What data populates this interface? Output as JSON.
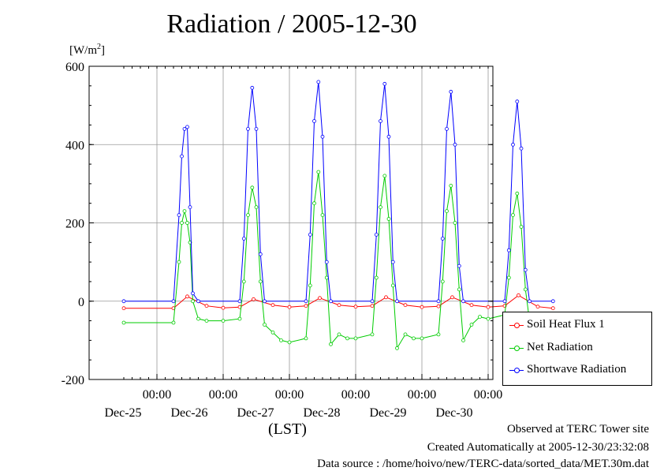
{
  "chart_data": {
    "type": "line",
    "title": "Radiation / 2005-12-30",
    "y_unit_base": "[W/m",
    "y_unit_sup": "2",
    "y_unit_end": "]",
    "ylim": [
      -200,
      600
    ],
    "y_ticks": [
      "600",
      "400",
      "200",
      "0",
      "-200"
    ],
    "x_tick_time": "00:00",
    "x_days": [
      "Dec-25",
      "Dec-26",
      "Dec-27",
      "Dec-28",
      "Dec-29",
      "Dec-30"
    ],
    "xlabel": "(LST)",
    "grid": true,
    "legend_position": "right",
    "series": [
      {
        "name": "Soil Heat Flux 1",
        "color": "#ff0000",
        "x": [
          "Dec-24 12:00",
          "Dec-25 06:00",
          "Dec-25 11:00",
          "Dec-25 18:00",
          "Dec-26 00:00",
          "Dec-26 06:00",
          "Dec-26 11:00",
          "Dec-26 18:00",
          "Dec-27 00:00",
          "Dec-27 06:00",
          "Dec-27 11:00",
          "Dec-27 18:00",
          "Dec-28 00:00",
          "Dec-28 06:00",
          "Dec-28 11:00",
          "Dec-28 18:00",
          "Dec-29 00:00",
          "Dec-29 06:00",
          "Dec-29 11:00",
          "Dec-29 18:00",
          "Dec-30 00:00",
          "Dec-30 06:00",
          "Dec-30 11:00",
          "Dec-30 18:00",
          "Dec-30 23:30"
        ],
        "y": [
          -18,
          -18,
          12,
          -12,
          -17,
          -15,
          5,
          -10,
          -15,
          -12,
          8,
          -10,
          -14,
          -12,
          10,
          -10,
          -15,
          -13,
          10,
          -10,
          -15,
          -12,
          15,
          -14,
          -18
        ]
      },
      {
        "name": "Net Radiation",
        "color": "#00cc00",
        "x": [
          "Dec-24 12:00",
          "Dec-25 06:00",
          "Dec-25 08:00",
          "Dec-25 09:00",
          "Dec-25 10:00",
          "Dec-25 11:00",
          "Dec-25 12:00",
          "Dec-25 13:00",
          "Dec-25 15:00",
          "Dec-25 18:00",
          "Dec-26 00:00",
          "Dec-26 06:00",
          "Dec-26 07:30",
          "Dec-26 09:00",
          "Dec-26 10:30",
          "Dec-26 12:00",
          "Dec-26 13:30",
          "Dec-26 15:00",
          "Dec-26 18:00",
          "Dec-26 21:00",
          "Dec-27 00:00",
          "Dec-27 06:00",
          "Dec-27 07:30",
          "Dec-27 09:00",
          "Dec-27 10:30",
          "Dec-27 12:00",
          "Dec-27 13:30",
          "Dec-27 15:00",
          "Dec-27 18:00",
          "Dec-27 21:00",
          "Dec-28 00:00",
          "Dec-28 06:00",
          "Dec-28 07:30",
          "Dec-28 09:00",
          "Dec-28 10:30",
          "Dec-28 12:00",
          "Dec-28 13:30",
          "Dec-28 15:00",
          "Dec-28 18:00",
          "Dec-28 21:00",
          "Dec-29 00:00",
          "Dec-29 06:00",
          "Dec-29 07:30",
          "Dec-29 09:00",
          "Dec-29 10:30",
          "Dec-29 12:00",
          "Dec-29 13:30",
          "Dec-29 15:00",
          "Dec-29 18:00",
          "Dec-29 21:00",
          "Dec-30 00:00",
          "Dec-30 06:00",
          "Dec-30 07:30",
          "Dec-30 09:00",
          "Dec-30 10:30",
          "Dec-30 12:00",
          "Dec-30 13:30",
          "Dec-30 15:00",
          "Dec-30 18:00",
          "Dec-30 23:30"
        ],
        "y": [
          -55,
          -55,
          100,
          200,
          230,
          200,
          150,
          0,
          -45,
          -50,
          -50,
          -45,
          50,
          220,
          290,
          240,
          50,
          -60,
          -80,
          -100,
          -105,
          -95,
          40,
          250,
          330,
          220,
          60,
          -110,
          -85,
          -95,
          -95,
          -85,
          60,
          240,
          320,
          210,
          40,
          -120,
          -85,
          -95,
          -95,
          -85,
          50,
          230,
          295,
          200,
          30,
          -100,
          -60,
          -40,
          -45,
          -35,
          60,
          220,
          275,
          190,
          30,
          -50,
          -50,
          -55
        ]
      },
      {
        "name": "Shortwave Radiation",
        "color": "#0000ff",
        "x": [
          "Dec-24 12:00",
          "Dec-25 06:00",
          "Dec-25 08:00",
          "Dec-25 09:00",
          "Dec-25 10:00",
          "Dec-25 11:00",
          "Dec-25 12:00",
          "Dec-25 13:00",
          "Dec-25 15:00",
          "Dec-26 06:00",
          "Dec-26 07:30",
          "Dec-26 09:00",
          "Dec-26 10:30",
          "Dec-26 12:00",
          "Dec-26 13:30",
          "Dec-26 15:00",
          "Dec-27 06:00",
          "Dec-27 07:30",
          "Dec-27 09:00",
          "Dec-27 10:30",
          "Dec-27 12:00",
          "Dec-27 13:30",
          "Dec-27 15:00",
          "Dec-28 06:00",
          "Dec-28 07:30",
          "Dec-28 09:00",
          "Dec-28 10:30",
          "Dec-28 12:00",
          "Dec-28 13:30",
          "Dec-28 15:00",
          "Dec-29 06:00",
          "Dec-29 07:30",
          "Dec-29 09:00",
          "Dec-29 10:30",
          "Dec-29 12:00",
          "Dec-29 13:30",
          "Dec-29 15:00",
          "Dec-30 06:00",
          "Dec-30 07:30",
          "Dec-30 09:00",
          "Dec-30 10:30",
          "Dec-30 12:00",
          "Dec-30 13:30",
          "Dec-30 15:00",
          "Dec-30 23:30"
        ],
        "y": [
          0,
          0,
          220,
          370,
          440,
          445,
          240,
          20,
          0,
          0,
          160,
          440,
          545,
          440,
          120,
          0,
          0,
          170,
          460,
          560,
          420,
          100,
          0,
          0,
          170,
          460,
          555,
          420,
          100,
          0,
          0,
          160,
          440,
          535,
          400,
          90,
          0,
          0,
          130,
          400,
          510,
          390,
          80,
          0,
          0
        ]
      }
    ]
  },
  "footer": {
    "line1": "Observed at TERC Tower site",
    "line2": "Created Automatically at 2005-12-30/23:32:08",
    "line3": "Data source : /home/hoivo/new/TERC-data/sorted_data/MET.30m.dat"
  }
}
